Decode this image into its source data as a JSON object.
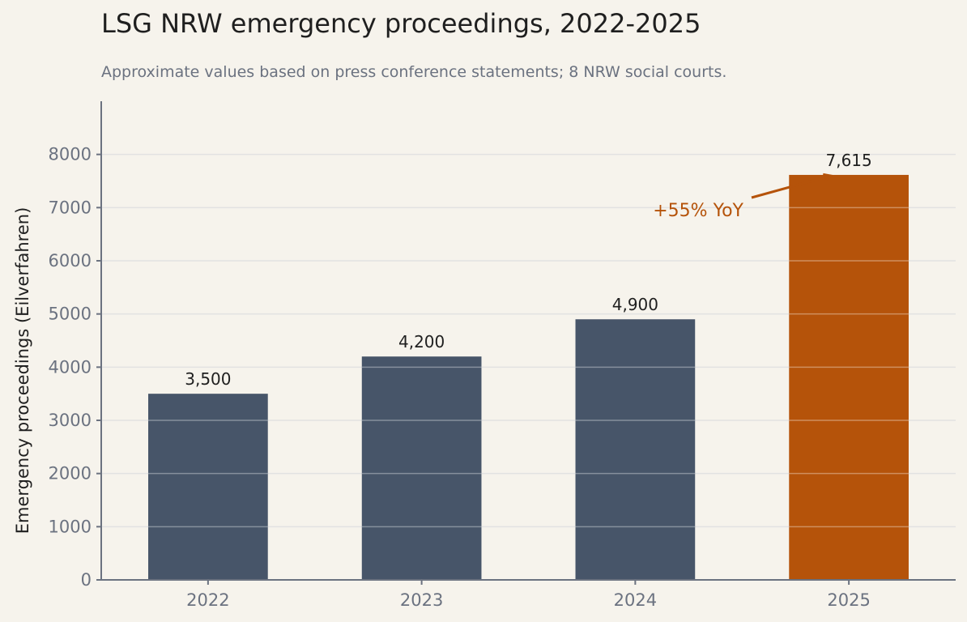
{
  "colors": {
    "base_bar": "#475569",
    "highlight_bar": "#b5530a"
  },
  "chart_data": {
    "type": "bar",
    "title": "LSG NRW emergency proceedings, 2022-2025",
    "subtitle": "Approximate values based on press conference statements; 8 NRW social courts.",
    "xlabel": "",
    "ylabel": "Emergency proceedings (Eilverfahren)",
    "categories": [
      "2022",
      "2023",
      "2024",
      "2025"
    ],
    "values": [
      3500,
      4200,
      4900,
      7615
    ],
    "value_labels": [
      "3,500",
      "4,200",
      "4,900",
      "7,615"
    ],
    "highlight_index": 3,
    "ylim": [
      0,
      9000
    ],
    "yticks": [
      0,
      1000,
      2000,
      3000,
      4000,
      5000,
      6000,
      7000,
      8000
    ],
    "grid": true,
    "annotation": {
      "text": "+55% YoY",
      "target_index": 3
    }
  }
}
